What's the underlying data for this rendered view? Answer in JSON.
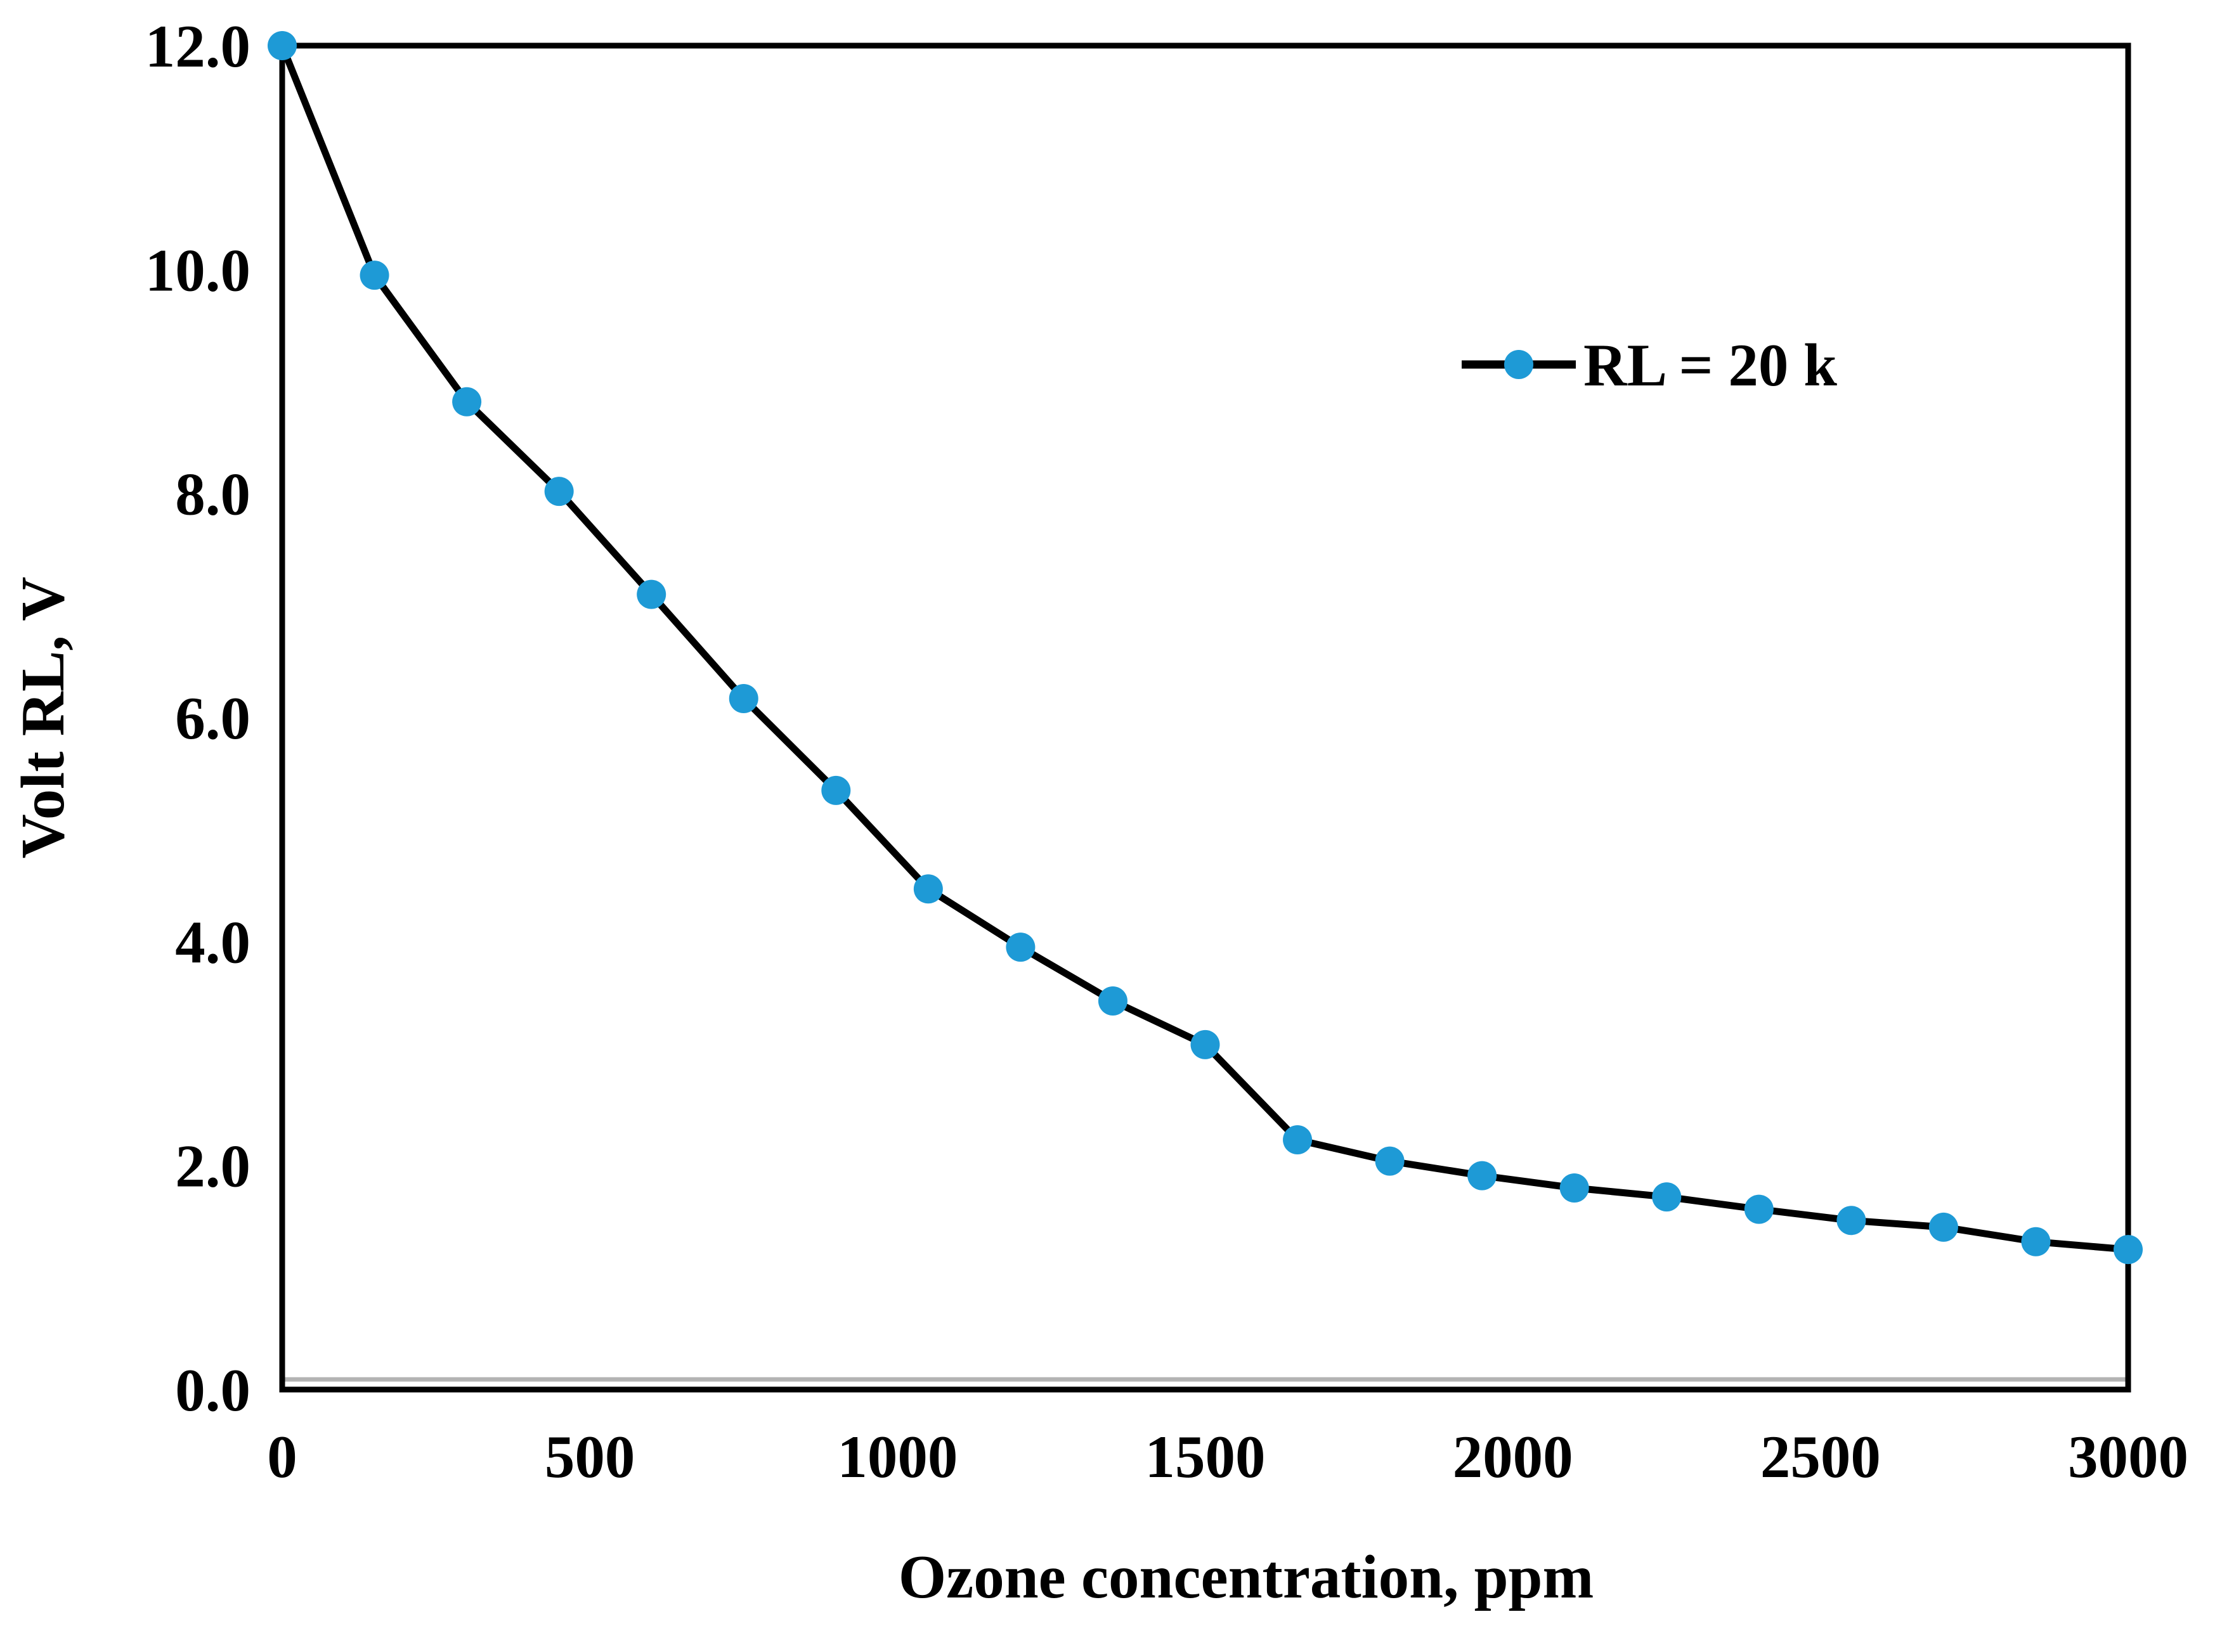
{
  "figure": {
    "background": "#ffffff"
  },
  "chart_data": {
    "type": "line",
    "title": "",
    "xlabel": "Ozone concentration, ppm",
    "ylabel": "Volt RL, V",
    "grid": false,
    "legend_position": "upper right",
    "xlim": [
      0,
      3000
    ],
    "ylim": [
      0,
      12
    ],
    "x_ticks": [
      "0",
      "500",
      "1000",
      "1500",
      "2000",
      "2500",
      "3000"
    ],
    "x_tick_values": [
      0,
      500,
      1000,
      1500,
      2000,
      2500,
      3000
    ],
    "y_ticks": [
      "0.0",
      "2.0",
      "4.0",
      "6.0",
      "8.0",
      "10.0",
      "12.0"
    ],
    "y_tick_values": [
      0,
      2,
      4,
      6,
      8,
      10,
      12
    ],
    "x": [
      0,
      150,
      300,
      450,
      600,
      750,
      900,
      1050,
      1200,
      1350,
      1500,
      1650,
      1800,
      1950,
      2100,
      2250,
      2400,
      2550,
      2700,
      2850,
      3000
    ],
    "series": [
      {
        "name": "RL = 20 k",
        "values": [
          12.0,
          9.95,
          8.82,
          8.02,
          7.1,
          6.17,
          5.35,
          4.47,
          3.95,
          3.47,
          3.08,
          2.23,
          2.04,
          1.91,
          1.8,
          1.72,
          1.61,
          1.51,
          1.45,
          1.32,
          1.25
        ]
      }
    ],
    "colors": {
      "marker": "#1E9AD6",
      "line": "#000000",
      "frame": "#000000",
      "axis_shadow": "#B3B3B3",
      "text": "#000000"
    }
  }
}
